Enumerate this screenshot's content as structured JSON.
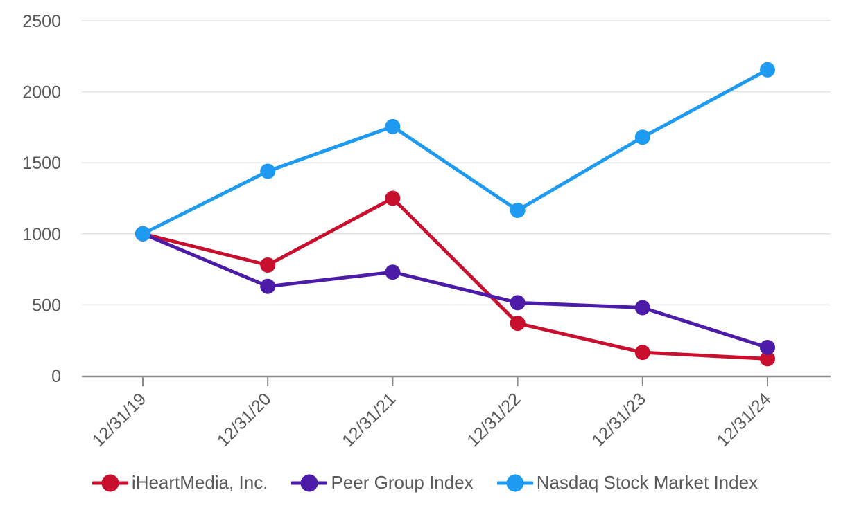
{
  "chart_data": {
    "type": "line",
    "title": "",
    "xlabel": "",
    "ylabel": "",
    "categories": [
      "12/31/19",
      "12/31/20",
      "12/31/21",
      "12/31/22",
      "12/31/23",
      "12/31/24"
    ],
    "series": [
      {
        "name": "iHeartMedia, Inc.",
        "color": "#C8102E",
        "values": [
          1000,
          780,
          1250,
          370,
          165,
          120
        ]
      },
      {
        "name": "Peer Group Index",
        "color": "#4C1CA8",
        "values": [
          1000,
          630,
          730,
          515,
          480,
          200
        ]
      },
      {
        "name": "Nasdaq Stock Market Index",
        "color": "#1E9BF0",
        "values": [
          1000,
          1440,
          1755,
          1165,
          1680,
          2155
        ]
      }
    ],
    "y_ticks": [
      "0",
      "500",
      "1000",
      "1500",
      "2000",
      "2500"
    ],
    "y_tick_values": [
      0,
      500,
      1000,
      1500,
      2000,
      2500
    ],
    "ylim": [
      0,
      2500
    ],
    "grid": true,
    "legend_position": "bottom",
    "marker_style": "circle",
    "axis_color": "#8C8C8C",
    "grid_color": "#E3E3E3",
    "label_color": "#595959"
  }
}
